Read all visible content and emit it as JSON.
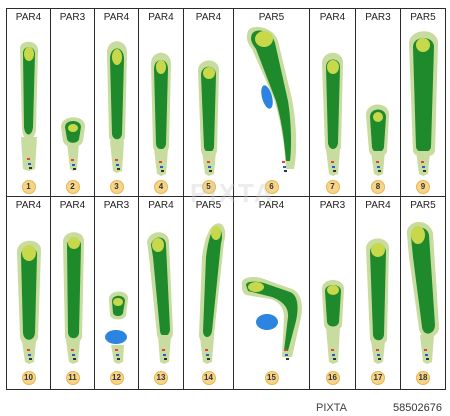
{
  "colors": {
    "rough": "#c9dca0",
    "fairway": "#1f8a2b",
    "green": "#c7d84a",
    "bunker": "#f1d8b5",
    "water": "#2a84e0",
    "badge": "#f6d58a"
  },
  "holes": [
    {
      "id": 1,
      "par": "PAR4",
      "num": "1"
    },
    {
      "id": 2,
      "par": "PAR3",
      "num": "2"
    },
    {
      "id": 3,
      "par": "PAR4",
      "num": "3"
    },
    {
      "id": 4,
      "par": "PAR4",
      "num": "4"
    },
    {
      "id": 5,
      "par": "PAR4",
      "num": "5"
    },
    {
      "id": 6,
      "par": "PAR5",
      "num": "6"
    },
    {
      "id": 7,
      "par": "PAR4",
      "num": "7"
    },
    {
      "id": 8,
      "par": "PAR3",
      "num": "8"
    },
    {
      "id": 9,
      "par": "PAR5",
      "num": "9"
    },
    {
      "id": 10,
      "par": "PAR4",
      "num": "10"
    },
    {
      "id": 11,
      "par": "PAR4",
      "num": "11"
    },
    {
      "id": 12,
      "par": "PAR3",
      "num": "12"
    },
    {
      "id": 13,
      "par": "PAR4",
      "num": "13"
    },
    {
      "id": 14,
      "par": "PAR5",
      "num": "14"
    },
    {
      "id": 15,
      "par": "PAR4",
      "num": "15"
    },
    {
      "id": 16,
      "par": "PAR3",
      "num": "16"
    },
    {
      "id": 17,
      "par": "PAR4",
      "num": "17"
    },
    {
      "id": 18,
      "par": "PAR5",
      "num": "18"
    }
  ],
  "watermark": "PIXTA",
  "credit": "58502676",
  "credit_logo": "PIXTA"
}
